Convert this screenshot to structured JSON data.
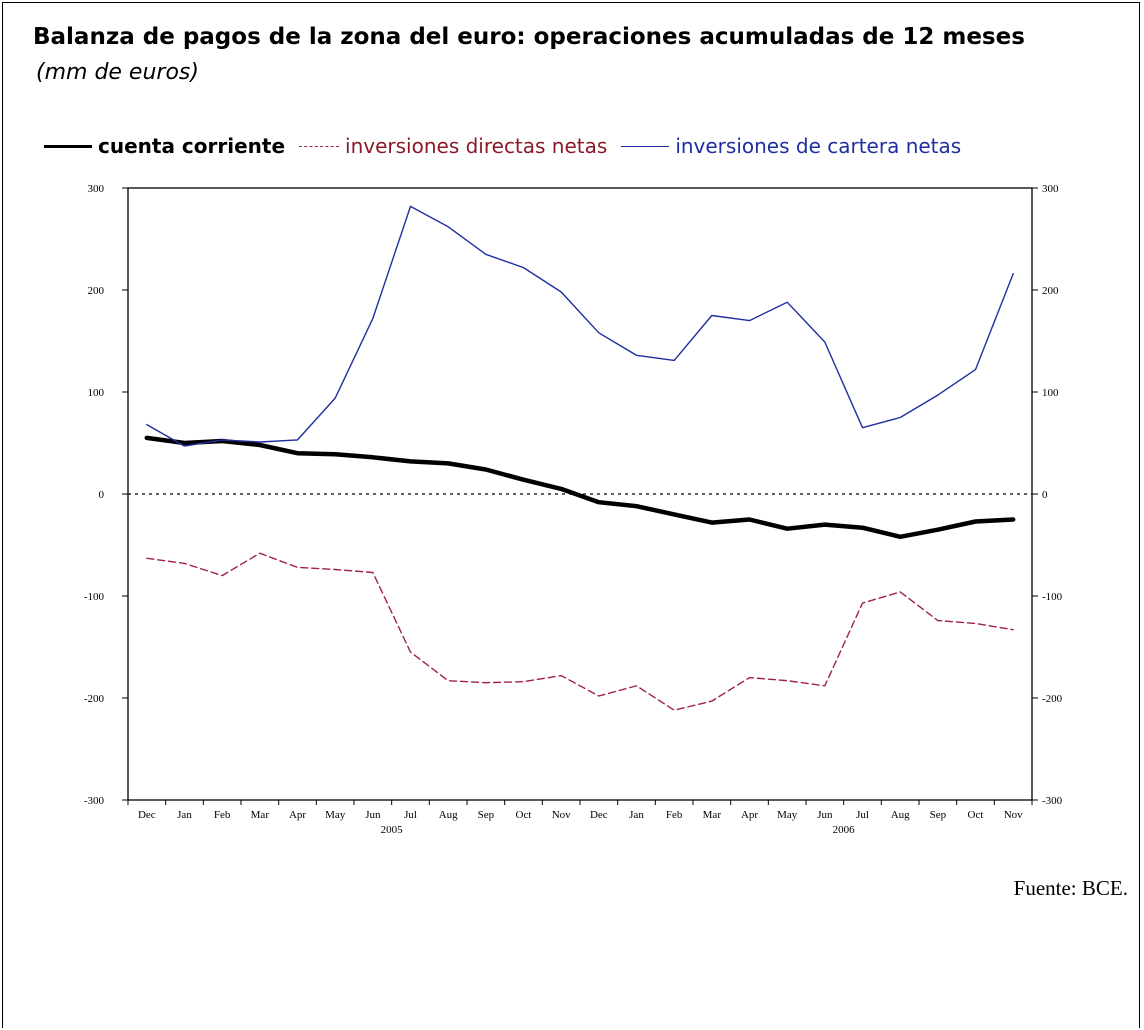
{
  "chart_data": {
    "type": "line",
    "title": "Balanza de pagos de la zona del euro: operaciones acumuladas de 12 meses",
    "subtitle": "(mm de euros)",
    "categories": [
      "Dec",
      "Jan",
      "Feb",
      "Mar",
      "Apr",
      "May",
      "Jun",
      "Jul",
      "Aug",
      "Sep",
      "Oct",
      "Nov",
      "Dec",
      "Jan",
      "Feb",
      "Mar",
      "Apr",
      "May",
      "Jun",
      "Jul",
      "Aug",
      "Sep",
      "Oct",
      "Nov"
    ],
    "year_labels": [
      "2005",
      "2006"
    ],
    "series": [
      {
        "name": "cuenta corriente",
        "color": "#000000",
        "values": [
          55,
          50,
          52,
          48,
          40,
          39,
          36,
          32,
          30,
          24,
          14,
          5,
          -8,
          -12,
          -20,
          -28,
          -25,
          -34,
          -30,
          -33,
          -42,
          -35,
          -27,
          -25
        ]
      },
      {
        "name": "inversiones directas netas",
        "color": "#a0204a",
        "values": [
          -63,
          -68,
          -80,
          -58,
          -72,
          -74,
          -77,
          -155,
          -183,
          -185,
          -184,
          -178,
          -198,
          -188,
          -212,
          -203,
          -180,
          -183,
          -188,
          -107,
          -96,
          -124,
          -127,
          -133
        ]
      },
      {
        "name": "inversiones de cartera netas",
        "color": "#1f2f9f",
        "values": [
          68,
          47,
          53,
          51,
          53,
          94,
          172,
          282,
          262,
          235,
          222,
          198,
          158,
          136,
          131,
          175,
          170,
          188,
          149,
          65,
          75,
          97,
          122,
          216
        ]
      }
    ],
    "ylim": [
      -300,
      300
    ],
    "yticks": [
      "300",
      "200",
      "100",
      "0",
      "-100",
      "-200",
      "-300"
    ],
    "zero_line": true,
    "legend_position": "top-left",
    "source": "Fuente: BCE."
  }
}
